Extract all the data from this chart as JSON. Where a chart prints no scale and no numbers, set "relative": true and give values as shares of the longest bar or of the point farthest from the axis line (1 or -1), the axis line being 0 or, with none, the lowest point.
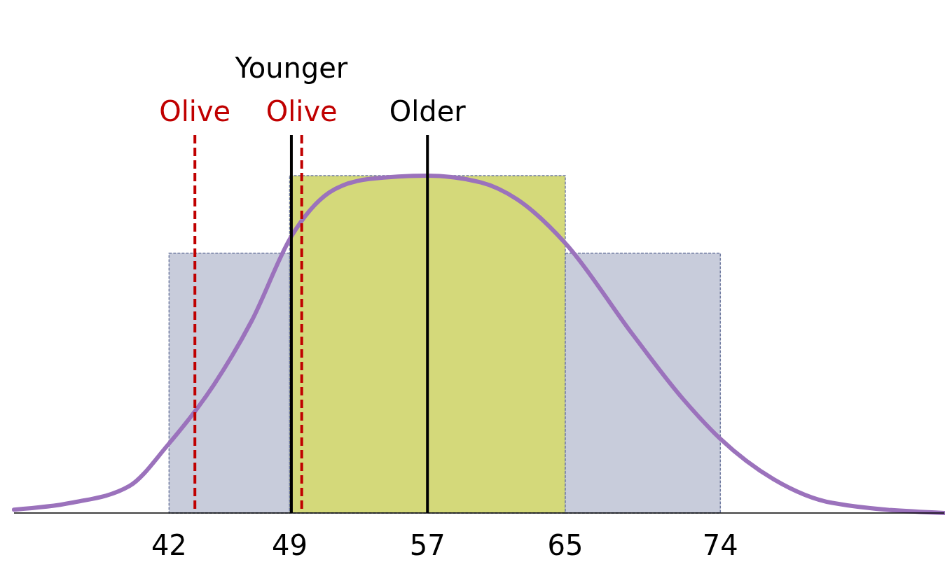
{
  "chart_data": {
    "type": "histogram",
    "relative": true,
    "xlim": [
      33,
      87
    ],
    "xticks": [
      42,
      49,
      57,
      65,
      74
    ],
    "tick_labels": "x",
    "series": [
      {
        "bins": [
          42,
          49,
          65,
          74
        ],
        "values": [
          0.77,
          1,
          0.77
        ],
        "colors": [
          "#c8ccdb",
          "#d4d97a",
          "#c8ccdb"
        ]
      },
      {
        "type": "line",
        "color": "#9b72bc",
        "x": [
          33,
          36.3,
          39.7,
          41.9,
          44.6,
          46.8,
          49.1,
          51.3,
          53.6,
          57,
          60.1,
          62.2,
          65,
          68.9,
          71.8,
          74,
          77.1,
          80.5,
          87
        ],
        "values": [
          0.01,
          0.03,
          0.08,
          0.2,
          0.38,
          0.57,
          0.82,
          0.95,
          0.99,
          1,
          0.98,
          0.93,
          0.8,
          0.53,
          0.34,
          0.22,
          0.1,
          0.03,
          0
        ]
      }
    ],
    "ref_lines": [
      {
        "axis": "x",
        "value": 43.5,
        "label": "Olive",
        "color": "#c00000",
        "line_style": "dashed"
      },
      {
        "axis": "x",
        "value": 49.7,
        "label": "Olive",
        "color": "#c00000",
        "line_style": "dashed"
      },
      {
        "axis": "x",
        "value": 49.1,
        "label": "Younger",
        "color": "#000000",
        "line_style": "solid"
      },
      {
        "axis": "x",
        "value": 57,
        "label": "Older",
        "color": "#000000",
        "line_style": "solid"
      }
    ]
  }
}
